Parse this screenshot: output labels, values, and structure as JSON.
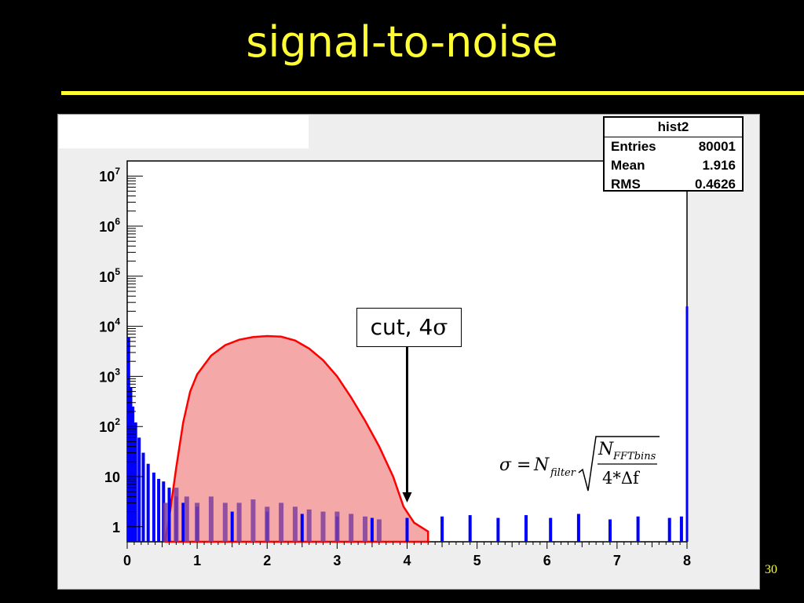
{
  "slide": {
    "title": "signal-to-noise",
    "page_number": "30"
  },
  "stats_box": {
    "name": "hist2",
    "rows": [
      {
        "label": "Entries",
        "value": "80001"
      },
      {
        "label": "Mean",
        "value": "1.916"
      },
      {
        "label": "RMS",
        "value": "0.4626"
      }
    ]
  },
  "annotation": {
    "cut_label_text": "cut, 4",
    "cut_label_symbol": "σ",
    "cut_x": 4
  },
  "formula": {
    "lhs": "σ",
    "eq": "=",
    "N": "N",
    "filter_sub": "filter",
    "num_N": "N",
    "num_sub": "FFTbins",
    "den": "4*Δf"
  },
  "colors": {
    "title": "#ffff33",
    "signal_fill": "#f4a8a8",
    "signal_line": "#ff0000",
    "noise": "#0000ff",
    "overlap": "#7f3f9f"
  },
  "chart_data": {
    "type": "histogram",
    "title": "",
    "xlabel": "",
    "ylabel": "",
    "y_scale": "log",
    "xlim": [
      0,
      8
    ],
    "ylim": [
      0.5,
      20000000
    ],
    "x_ticks": [
      "0",
      "1",
      "2",
      "3",
      "4",
      "5",
      "6",
      "7",
      "8"
    ],
    "y_ticks": [
      {
        "value": 1,
        "base": "1",
        "exp": ""
      },
      {
        "value": 10,
        "base": "10",
        "exp": ""
      },
      {
        "value": 100,
        "base": "10",
        "exp": "2"
      },
      {
        "value": 1000,
        "base": "10",
        "exp": "3"
      },
      {
        "value": 10000,
        "base": "10",
        "exp": "4"
      },
      {
        "value": 100000,
        "base": "10",
        "exp": "5"
      },
      {
        "value": 1000000,
        "base": "10",
        "exp": "6"
      },
      {
        "value": 10000000,
        "base": "10",
        "exp": "7"
      }
    ],
    "series": [
      {
        "type": "area",
        "color": "#ff0000",
        "points": [
          [
            0.55,
            0.6
          ],
          [
            0.6,
            1.5
          ],
          [
            0.7,
            15
          ],
          [
            0.8,
            120
          ],
          [
            0.9,
            500
          ],
          [
            1.0,
            1100
          ],
          [
            1.2,
            2600
          ],
          [
            1.4,
            4200
          ],
          [
            1.6,
            5400
          ],
          [
            1.8,
            6100
          ],
          [
            2.0,
            6400
          ],
          [
            2.2,
            6200
          ],
          [
            2.4,
            5200
          ],
          [
            2.6,
            3600
          ],
          [
            2.8,
            2100
          ],
          [
            3.0,
            1000
          ],
          [
            3.2,
            380
          ],
          [
            3.4,
            130
          ],
          [
            3.6,
            40
          ],
          [
            3.8,
            10
          ],
          [
            3.95,
            2.5
          ],
          [
            4.1,
            1.2
          ],
          [
            4.3,
            0.8
          ]
        ]
      },
      {
        "type": "bars",
        "color": "#0000ff",
        "points": [
          [
            0.02,
            6000
          ],
          [
            0.05,
            600
          ],
          [
            0.08,
            250
          ],
          [
            0.12,
            120
          ],
          [
            0.17,
            60
          ],
          [
            0.23,
            30
          ],
          [
            0.3,
            18
          ],
          [
            0.38,
            12
          ],
          [
            0.45,
            9
          ],
          [
            0.52,
            8
          ],
          [
            0.6,
            6
          ],
          [
            0.7,
            4
          ],
          [
            0.8,
            3
          ],
          [
            1.0,
            2.5
          ],
          [
            1.5,
            2
          ],
          [
            2.0,
            2
          ],
          [
            2.5,
            1.8
          ],
          [
            3.0,
            1.6
          ],
          [
            3.5,
            1.5
          ],
          [
            4.0,
            1.5
          ],
          [
            4.5,
            1.6
          ],
          [
            4.9,
            1.7
          ],
          [
            5.3,
            1.5
          ],
          [
            5.7,
            1.7
          ],
          [
            6.05,
            1.5
          ],
          [
            6.45,
            1.8
          ],
          [
            6.9,
            1.4
          ],
          [
            7.3,
            1.6
          ],
          [
            7.75,
            1.5
          ],
          [
            7.92,
            1.6
          ],
          [
            8.0,
            25000
          ]
        ]
      },
      {
        "type": "bars",
        "color": "#7f3f9f",
        "points": [
          [
            0.55,
            3
          ],
          [
            0.7,
            6
          ],
          [
            0.85,
            4
          ],
          [
            1.0,
            3
          ],
          [
            1.2,
            4
          ],
          [
            1.4,
            3
          ],
          [
            1.6,
            3
          ],
          [
            1.8,
            3.5
          ],
          [
            2.0,
            2.5
          ],
          [
            2.2,
            3
          ],
          [
            2.4,
            2.5
          ],
          [
            2.6,
            2.2
          ],
          [
            2.8,
            2
          ],
          [
            3.0,
            2
          ],
          [
            3.2,
            1.8
          ],
          [
            3.4,
            1.6
          ],
          [
            3.6,
            1.4
          ]
        ]
      }
    ]
  }
}
